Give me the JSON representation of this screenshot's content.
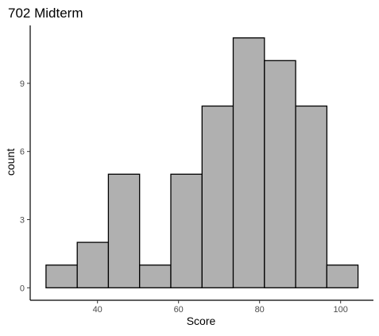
{
  "chart_data": {
    "type": "bar",
    "subtype": "histogram",
    "title": "702 Midterm",
    "xlabel": "Score",
    "ylabel": "count",
    "bins": [
      {
        "x0": 27.3,
        "x1": 35.0,
        "count": 1
      },
      {
        "x0": 35.0,
        "x1": 42.7,
        "count": 2
      },
      {
        "x0": 42.7,
        "x1": 50.4,
        "count": 5
      },
      {
        "x0": 50.4,
        "x1": 58.1,
        "count": 1
      },
      {
        "x0": 58.1,
        "x1": 65.8,
        "count": 5
      },
      {
        "x0": 65.8,
        "x1": 73.5,
        "count": 8
      },
      {
        "x0": 73.5,
        "x1": 81.2,
        "count": 11
      },
      {
        "x0": 81.2,
        "x1": 88.9,
        "count": 10
      },
      {
        "x0": 88.9,
        "x1": 96.6,
        "count": 8
      },
      {
        "x0": 96.6,
        "x1": 104.3,
        "count": 1
      }
    ],
    "xlim": [
      23.4,
      108.1
    ],
    "ylim": [
      -0.55,
      11.55
    ],
    "xticks": [
      40,
      60,
      80,
      100
    ],
    "yticks": [
      0,
      3,
      6,
      9
    ],
    "bar_fill": "#b0b0b0",
    "bar_stroke": "#000000",
    "grid": false,
    "legend": "none"
  }
}
